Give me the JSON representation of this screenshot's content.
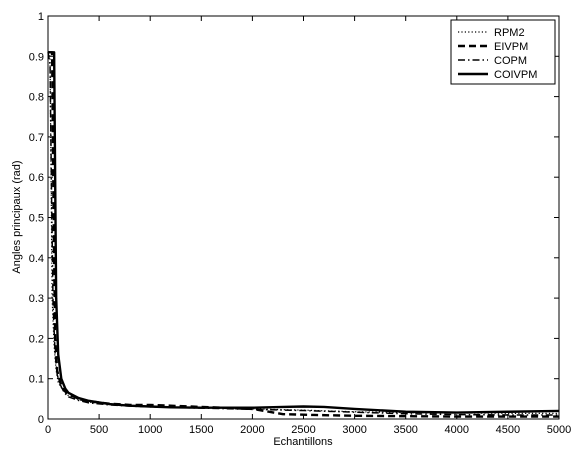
{
  "chart_data": {
    "type": "line",
    "title": "",
    "xlabel": "Echantillons",
    "ylabel": "Angles principaux (rad)",
    "xlim": [
      0,
      5000
    ],
    "ylim": [
      0,
      1
    ],
    "xticks": [
      0,
      500,
      1000,
      1500,
      2000,
      2500,
      3000,
      3500,
      4000,
      4500,
      5000
    ],
    "yticks": [
      0,
      0.1,
      0.2,
      0.3,
      0.4,
      0.5,
      0.6,
      0.7,
      0.8,
      0.9,
      1
    ],
    "xtick_labels": [
      "0",
      "500",
      "1000",
      "1500",
      "2000",
      "2500",
      "3000",
      "3500",
      "4000",
      "4500",
      "5000"
    ],
    "ytick_labels": [
      "0",
      "0.1",
      "0.2",
      "0.3",
      "0.4",
      "0.5",
      "0.6",
      "0.7",
      "0.8",
      "0.9",
      "1"
    ],
    "grid": false,
    "legend_position": "top-right",
    "series": [
      {
        "name": "RPM2",
        "style": "dotted",
        "color": "#000000",
        "x": [
          0,
          20,
          30,
          40,
          60,
          80,
          100,
          150,
          200,
          300,
          400,
          600,
          800,
          1000,
          1200,
          1500,
          2000,
          2500,
          3000,
          3500,
          4000,
          4500,
          5000
        ],
        "y": [
          0.91,
          0.9,
          0.6,
          0.3,
          0.18,
          0.12,
          0.09,
          0.07,
          0.058,
          0.048,
          0.042,
          0.036,
          0.033,
          0.031,
          0.03,
          0.028,
          0.025,
          0.022,
          0.018,
          0.016,
          0.015,
          0.014,
          0.014
        ]
      },
      {
        "name": "EIVPM",
        "style": "dashed",
        "color": "#000000",
        "x": [
          0,
          20,
          40,
          55,
          70,
          90,
          120,
          160,
          200,
          300,
          400,
          600,
          800,
          1000,
          1200,
          1500,
          2000,
          2300,
          2600,
          3000,
          3500,
          4000,
          4500,
          5000
        ],
        "y": [
          0.91,
          0.91,
          0.91,
          0.5,
          0.2,
          0.12,
          0.09,
          0.07,
          0.062,
          0.05,
          0.044,
          0.038,
          0.035,
          0.035,
          0.033,
          0.03,
          0.025,
          0.012,
          0.01,
          0.008,
          0.007,
          0.006,
          0.006,
          0.006
        ]
      },
      {
        "name": "COPM",
        "style": "dashdot",
        "color": "#000000",
        "x": [
          0,
          20,
          35,
          50,
          70,
          90,
          120,
          160,
          200,
          300,
          400,
          600,
          800,
          1000,
          1200,
          1500,
          2000,
          2500,
          3000,
          3500,
          4000,
          4500,
          5000
        ],
        "y": [
          0.91,
          0.88,
          0.55,
          0.28,
          0.16,
          0.11,
          0.085,
          0.065,
          0.055,
          0.046,
          0.04,
          0.035,
          0.032,
          0.03,
          0.029,
          0.027,
          0.024,
          0.021,
          0.017,
          0.013,
          0.011,
          0.01,
          0.01
        ]
      },
      {
        "name": "COIVPM",
        "style": "solid",
        "color": "#000000",
        "x": [
          0,
          20,
          40,
          60,
          70,
          80,
          100,
          130,
          170,
          200,
          300,
          400,
          600,
          800,
          1000,
          1200,
          1500,
          2000,
          2300,
          2500,
          2700,
          3000,
          3500,
          4000,
          4500,
          5000
        ],
        "y": [
          0.91,
          0.91,
          0.91,
          0.91,
          0.6,
          0.3,
          0.16,
          0.1,
          0.075,
          0.065,
          0.052,
          0.045,
          0.037,
          0.033,
          0.031,
          0.029,
          0.028,
          0.028,
          0.03,
          0.031,
          0.03,
          0.025,
          0.018,
          0.016,
          0.018,
          0.02
        ]
      }
    ]
  }
}
